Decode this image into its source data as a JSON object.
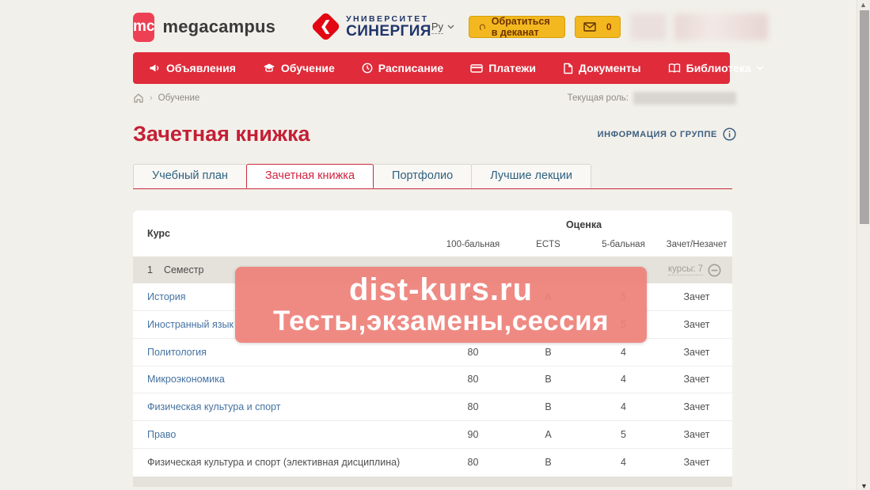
{
  "header": {
    "brand_short": "mc",
    "brand_name": "megacampus",
    "university_line1": "УНИВЕРСИТЕТ",
    "university_line2": "СИНЕРГИЯ",
    "university_mark": "❮",
    "language": "Ру",
    "dean_button_label": "Обратиться в деканат",
    "mail_count": "0"
  },
  "nav": {
    "items": [
      {
        "label": "Объявления",
        "icon": "megaphone-icon",
        "has_dropdown": false
      },
      {
        "label": "Обучение",
        "icon": "graduation-cap-icon",
        "has_dropdown": false
      },
      {
        "label": "Расписание",
        "icon": "clock-icon",
        "has_dropdown": false
      },
      {
        "label": "Платежи",
        "icon": "card-icon",
        "has_dropdown": false
      },
      {
        "label": "Документы",
        "icon": "document-icon",
        "has_dropdown": false
      },
      {
        "label": "Библиотека",
        "icon": "book-icon",
        "has_dropdown": true
      }
    ]
  },
  "breadcrumb": {
    "current": "Обучение",
    "role_label": "Текущая роль:"
  },
  "page": {
    "title": "Зачетная книжка",
    "group_info_label": "ИНФОРМАЦИЯ О ГРУППЕ"
  },
  "tabs": [
    {
      "label": "Учебный план",
      "active": false
    },
    {
      "label": "Зачетная книжка",
      "active": true
    },
    {
      "label": "Портфолио",
      "active": false
    },
    {
      "label": "Лучшие лекции",
      "active": false
    }
  ],
  "table": {
    "course_header": "Курс",
    "grade_header": "Оценка",
    "subheaders": [
      "100-бальная",
      "ECTS",
      "5-бальная",
      "Зачет/Незачет"
    ],
    "semester": {
      "number": "1",
      "label": "Семестр",
      "courses_label": "курсы: 7"
    },
    "rows": [
      {
        "name": "История",
        "link": true,
        "score100": "90",
        "ects": "A",
        "score5": "5",
        "pass": "Зачет"
      },
      {
        "name": "Иностранный язык",
        "link": true,
        "score100": "90",
        "ects": "A",
        "score5": "5",
        "pass": "Зачет"
      },
      {
        "name": "Политология",
        "link": true,
        "score100": "80",
        "ects": "B",
        "score5": "4",
        "pass": "Зачет"
      },
      {
        "name": "Микроэкономика",
        "link": true,
        "score100": "80",
        "ects": "B",
        "score5": "4",
        "pass": "Зачет"
      },
      {
        "name": "Физическая культура и спорт",
        "link": true,
        "score100": "80",
        "ects": "B",
        "score5": "4",
        "pass": "Зачет"
      },
      {
        "name": "Право",
        "link": true,
        "score100": "90",
        "ects": "A",
        "score5": "5",
        "pass": "Зачет"
      },
      {
        "name": "Физическая культура и спорт (элективная дисциплина)",
        "link": false,
        "score100": "80",
        "ects": "B",
        "score5": "4",
        "pass": "Зачет"
      }
    ]
  },
  "watermark": {
    "line1": "dist-kurs.ru",
    "line2": "Тесты,экзамены,сессия"
  },
  "colors": {
    "nav_red": "#df2b3a",
    "title_red": "#c41f35",
    "accent_yellow": "#f3b81f",
    "link_blue": "#4472a1",
    "synergy_blue": "#20356b",
    "watermark_pink": "#ee817a"
  }
}
